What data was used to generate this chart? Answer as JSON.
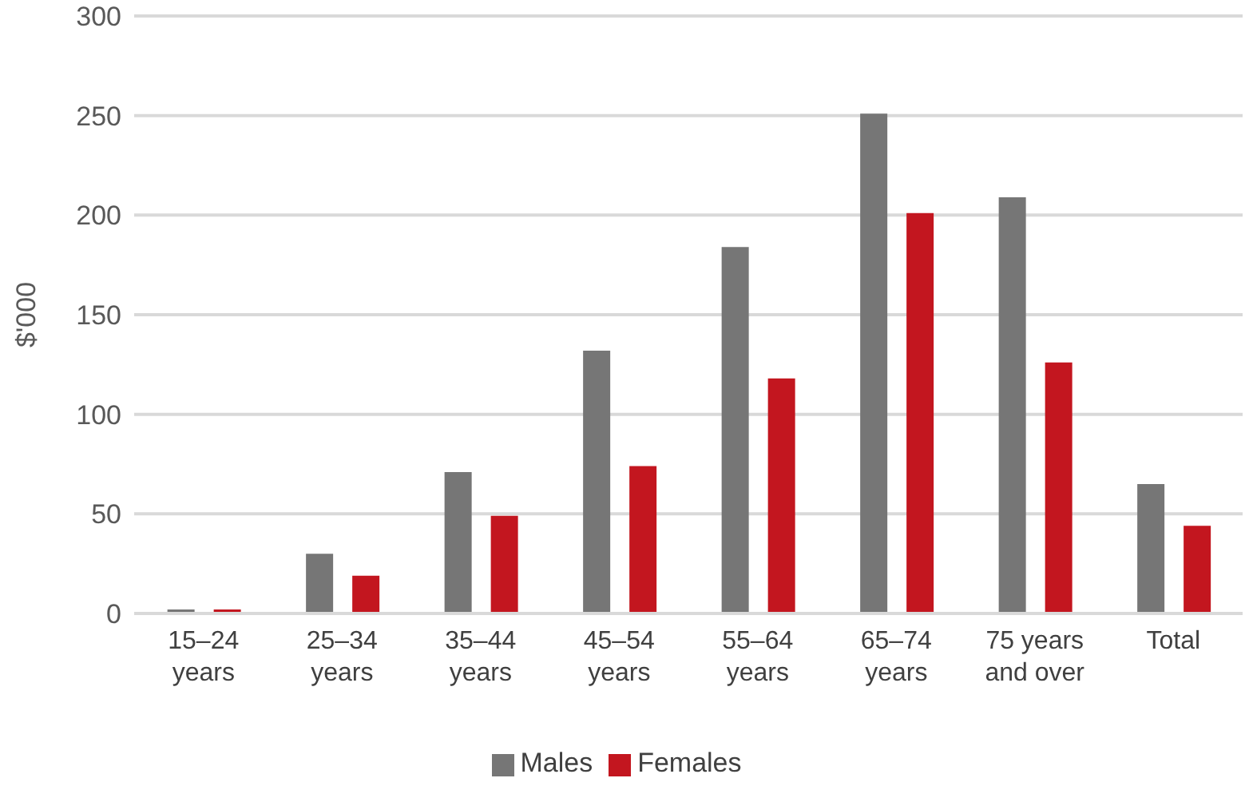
{
  "chart_data": {
    "type": "bar",
    "categories": [
      "15–24 years",
      "25–34 years",
      "35–44 years",
      "45–54 years",
      "55–64 years",
      "65–74 years",
      "75 years and over",
      "Total"
    ],
    "ylabel": "$'000",
    "ylim": [
      0,
      300
    ],
    "yticks": [
      0,
      50,
      100,
      150,
      200,
      250,
      300
    ],
    "grid": "y",
    "legend": "bottom",
    "series": [
      {
        "name": "Males",
        "color": "#767676",
        "values": [
          2,
          30,
          71,
          132,
          184,
          251,
          209,
          65
        ]
      },
      {
        "name": "Females",
        "color": "#c3161f",
        "values": [
          2,
          19,
          49,
          74,
          118,
          201,
          126,
          44
        ]
      }
    ]
  }
}
